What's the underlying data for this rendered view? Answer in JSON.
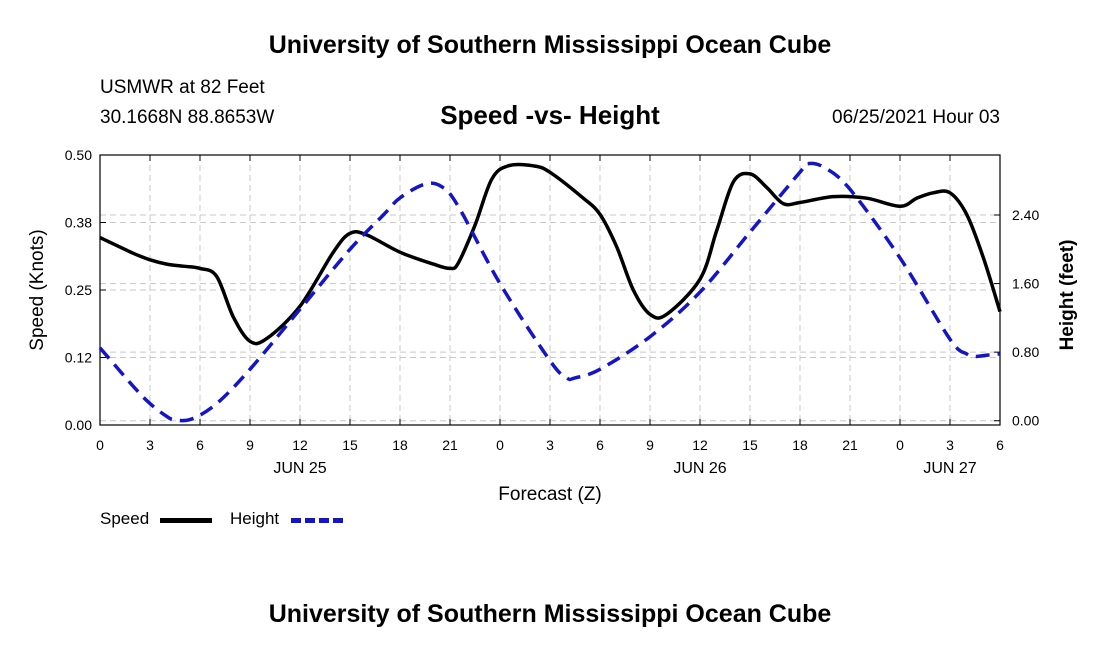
{
  "page_title": "University of Southern Mississippi Ocean Cube",
  "footer_title": "University of Southern Mississippi Ocean Cube",
  "station": {
    "name": "USMWR at 82 Feet",
    "coords": "30.1668N  88.8653W"
  },
  "timestamp": "06/25/2021 Hour 03",
  "colors": {
    "speed": "#000000",
    "height": "#1515c8",
    "grid": "#c8c8c8"
  },
  "chart_data": {
    "type": "line",
    "title": "Speed -vs- Height",
    "xlabel": "Forecast (Z)",
    "ylabel": "Speed (Knots)",
    "y2label": "Height (feet)",
    "xlim": [
      0,
      54
    ],
    "ylim": [
      0,
      0.5
    ],
    "y2lim": [
      -0.05,
      3.1
    ],
    "x_ticks": [
      0,
      3,
      6,
      9,
      12,
      15,
      18,
      21,
      24,
      27,
      30,
      33,
      36,
      39,
      42,
      45,
      48,
      51,
      54
    ],
    "x_tick_labels": [
      "0",
      "3",
      "6",
      "9",
      "12",
      "15",
      "18",
      "21",
      "0",
      "3",
      "6",
      "9",
      "12",
      "15",
      "18",
      "21",
      "0",
      "3",
      "6"
    ],
    "date_labels": [
      {
        "x": 12,
        "label": "JUN 25"
      },
      {
        "x": 36,
        "label": "JUN 26"
      },
      {
        "x": 51,
        "label": "JUN 27"
      }
    ],
    "y_ticks": [
      0.0,
      0.125,
      0.25,
      0.375,
      0.5
    ],
    "y_tick_labels": [
      "0.00",
      "0.12",
      "0.25",
      "0.38",
      "0.50"
    ],
    "y2_ticks": [
      0.0,
      0.8,
      1.6,
      2.4
    ],
    "y2_tick_labels": [
      "0.00",
      "0.80",
      "1.60",
      "2.40"
    ],
    "legend": [
      "Speed",
      "Height"
    ],
    "series": [
      {
        "name": "Speed",
        "axis": "left",
        "x": [
          0,
          2,
          3,
          4,
          5,
          6,
          7,
          8,
          9,
          10,
          12,
          14,
          15,
          16,
          18,
          20,
          21,
          21.5,
          22.5,
          23.5,
          24.5,
          26,
          27,
          29,
          30,
          31,
          32,
          33,
          34,
          36,
          37,
          38,
          39,
          40,
          41,
          42,
          44,
          46,
          48,
          49,
          50,
          51,
          52,
          53,
          54
        ],
        "values": [
          0.347,
          0.318,
          0.306,
          0.298,
          0.294,
          0.29,
          0.275,
          0.2,
          0.155,
          0.16,
          0.22,
          0.32,
          0.355,
          0.352,
          0.32,
          0.298,
          0.29,
          0.3,
          0.37,
          0.455,
          0.48,
          0.48,
          0.468,
          0.42,
          0.39,
          0.33,
          0.25,
          0.205,
          0.205,
          0.27,
          0.36,
          0.45,
          0.465,
          0.44,
          0.41,
          0.412,
          0.423,
          0.42,
          0.405,
          0.42,
          0.43,
          0.43,
          0.39,
          0.31,
          0.21
        ]
      },
      {
        "name": "Height",
        "axis": "right",
        "x": [
          0,
          2,
          3,
          4,
          4.5,
          5.5,
          7,
          9,
          12,
          15,
          17,
          18,
          19.5,
          20.5,
          21.5,
          24,
          27,
          28,
          28.5,
          30,
          33,
          36,
          39,
          42,
          42.5,
          43.5,
          45,
          48,
          51,
          52,
          52.5,
          53,
          54
        ],
        "values": [
          0.85,
          0.4,
          0.2,
          0.05,
          0.01,
          0.02,
          0.2,
          0.6,
          1.3,
          2.0,
          2.4,
          2.6,
          2.76,
          2.73,
          2.5,
          1.6,
          0.7,
          0.5,
          0.5,
          0.6,
          0.98,
          1.5,
          2.2,
          2.9,
          3.0,
          2.95,
          2.7,
          1.9,
          0.95,
          0.78,
          0.75,
          0.76,
          0.78
        ]
      }
    ]
  }
}
